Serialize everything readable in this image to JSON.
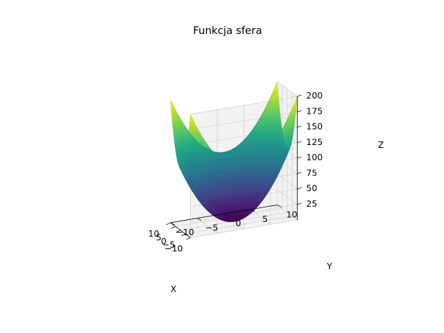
{
  "chart_data": {
    "type": "surface3d",
    "title": "Funkcja sfera",
    "function": "z = x^2 + y^2",
    "xlabel": "X",
    "ylabel": "Y",
    "zlabel": "Z",
    "xlim": [
      -10,
      10
    ],
    "ylim": [
      -10,
      10
    ],
    "zlim": [
      0,
      200
    ],
    "x_ticks": [
      -10,
      -5,
      0,
      5,
      10
    ],
    "y_ticks": [
      -10,
      -5,
      0,
      5,
      10
    ],
    "z_ticks": [
      25,
      50,
      75,
      100,
      125,
      150,
      175,
      200
    ],
    "x_tick_labels": [
      "−10",
      "−5",
      "0",
      "5",
      "10"
    ],
    "y_tick_labels": [
      "−10",
      "−5",
      "0",
      "5",
      "10"
    ],
    "z_tick_labels": [
      "25",
      "50",
      "75",
      "100",
      "125",
      "150",
      "175",
      "200"
    ],
    "colormap": "viridis",
    "grid": true,
    "pane_color": "#f2f2f2"
  }
}
